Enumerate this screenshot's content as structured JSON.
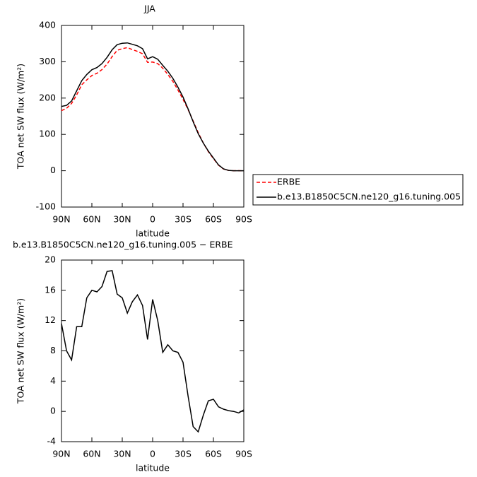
{
  "chart_data": [
    {
      "type": "line",
      "title": "JJA",
      "ylabel": "TOA net SW flux (W/m²)",
      "xlabel": "latitude",
      "x": [
        90,
        85,
        80,
        75,
        70,
        65,
        60,
        55,
        50,
        45,
        40,
        35,
        30,
        25,
        20,
        15,
        10,
        5,
        0,
        -5,
        -10,
        -15,
        -20,
        -25,
        -30,
        -35,
        -40,
        -45,
        -50,
        -55,
        -60,
        -65,
        -70,
        -75,
        -80,
        -85,
        -90
      ],
      "xlim": [
        90,
        -90
      ],
      "xticks": [
        {
          "value": 90,
          "label": "90N"
        },
        {
          "value": 60,
          "label": "60N"
        },
        {
          "value": 30,
          "label": "30N"
        },
        0,
        {
          "value": -30,
          "label": "30S"
        },
        {
          "value": -60,
          "label": "60S"
        },
        {
          "value": -90,
          "label": "90S"
        }
      ],
      "ylim": [
        -100,
        400
      ],
      "yticks": [
        -100,
        0,
        100,
        200,
        300,
        400
      ],
      "legend": "right",
      "series": [
        {
          "name": "ERBE",
          "color": "#ff0000",
          "dash": true,
          "values": [
            165.4,
            172,
            185.2,
            208.8,
            236.8,
            250,
            262,
            268.2,
            278.5,
            293.5,
            314.4,
            331.5,
            336,
            339,
            333.5,
            328.6,
            322,
            298.5,
            299.2,
            295,
            282.2,
            265.2,
            246,
            222.2,
            196.5,
            168,
            137,
            104.7,
            76.5,
            52.6,
            33.4,
            15.4,
            4.7,
            0.9,
            0,
            0.2,
            -0.2
          ]
        },
        {
          "name": "b.e13.B1850C5CN.ne120_g16.tuning.005",
          "color": "#000000",
          "dash": false,
          "values": [
            177,
            180,
            192,
            220,
            248,
            265,
            278,
            284,
            295,
            312,
            333,
            347,
            351,
            352,
            348,
            344,
            336,
            308,
            314,
            307,
            290,
            274,
            254,
            230,
            203,
            170,
            135,
            102,
            76,
            54,
            35,
            16,
            5,
            1,
            0,
            0,
            0
          ]
        }
      ]
    },
    {
      "type": "line",
      "title": "b.e13.B1850C5CN.ne120_g16.tuning.005 − ERBE",
      "ylabel": "TOA net SW flux (W/m²)",
      "xlabel": "latitude",
      "x": [
        90,
        85,
        80,
        75,
        70,
        65,
        60,
        55,
        50,
        45,
        40,
        35,
        30,
        25,
        20,
        15,
        10,
        5,
        0,
        -5,
        -10,
        -15,
        -20,
        -25,
        -30,
        -35,
        -40,
        -45,
        -50,
        -55,
        -60,
        -65,
        -70,
        -75,
        -80,
        -85,
        -90
      ],
      "xlim": [
        90,
        -90
      ],
      "xticks": [
        {
          "value": 90,
          "label": "90N"
        },
        {
          "value": 60,
          "label": "60N"
        },
        {
          "value": 30,
          "label": "30N"
        },
        0,
        {
          "value": -30,
          "label": "30S"
        },
        {
          "value": -60,
          "label": "60S"
        },
        {
          "value": -90,
          "label": "90S"
        }
      ],
      "ylim": [
        -4,
        20
      ],
      "yticks": [
        -4,
        0,
        4,
        8,
        12,
        16,
        20
      ],
      "series": [
        {
          "color": "#000000",
          "dash": false,
          "values": [
            11.6,
            8.0,
            6.8,
            11.2,
            11.2,
            15.0,
            16.0,
            15.8,
            16.5,
            18.5,
            18.6,
            15.5,
            15.0,
            13.0,
            14.5,
            15.4,
            14.0,
            9.5,
            14.8,
            12.0,
            7.8,
            8.8,
            8.0,
            7.8,
            6.5,
            2.0,
            -2.0,
            -2.7,
            -0.5,
            1.4,
            1.6,
            0.6,
            0.3,
            0.1,
            0.0,
            -0.2,
            0.2
          ]
        }
      ]
    }
  ]
}
